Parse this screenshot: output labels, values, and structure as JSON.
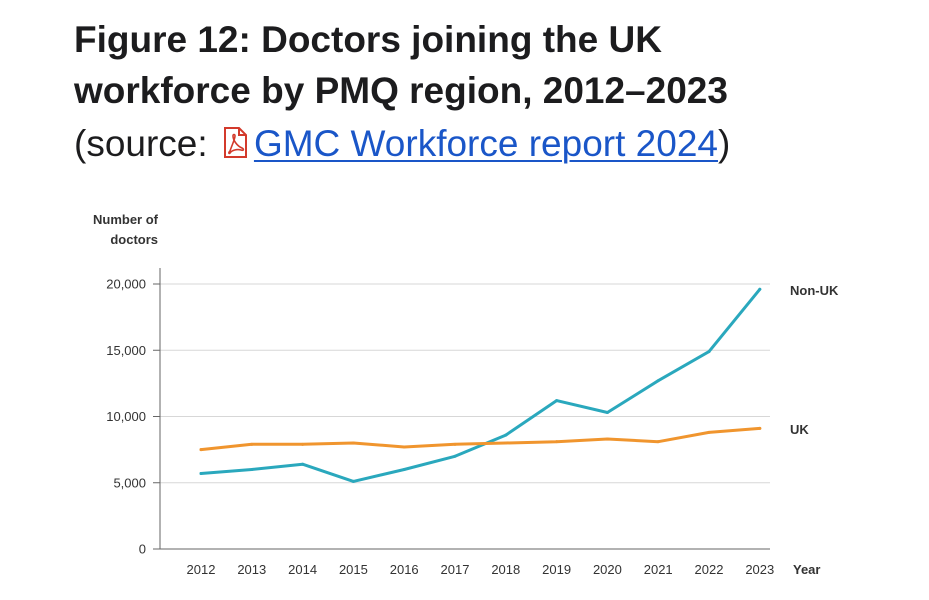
{
  "heading": {
    "line1": "Figure 12: Doctors joining the UK",
    "line2": "workforce by PMQ region, 2012–2023",
    "source_prefix": "(source: ",
    "source_icon": "pdf-file-icon",
    "source_link": "GMC Workforce report 2024",
    "source_suffix": ")"
  },
  "chart_data": {
    "type": "line",
    "title": "",
    "ylabel": "Number of doctors",
    "xlabel": "Year",
    "x": [
      2012,
      2013,
      2014,
      2015,
      2016,
      2017,
      2018,
      2019,
      2020,
      2021,
      2022,
      2023
    ],
    "ylim": [
      0,
      20000
    ],
    "yticks": [
      0,
      5000,
      10000,
      15000,
      20000
    ],
    "ytick_labels": [
      "0",
      "5,000",
      "10,000",
      "15,000",
      "20,000"
    ],
    "grid": true,
    "legend": "inline labels at right end of each line",
    "series": [
      {
        "name": "Non-UK",
        "color": "#2aa8bd",
        "values": [
          5700,
          6000,
          6400,
          5100,
          6000,
          7000,
          8600,
          11200,
          10300,
          12700,
          14900,
          19600
        ]
      },
      {
        "name": "UK",
        "color": "#f0952e",
        "values": [
          7500,
          7900,
          7900,
          8000,
          7700,
          7900,
          8000,
          8100,
          8300,
          8100,
          8800,
          9100
        ]
      }
    ]
  }
}
